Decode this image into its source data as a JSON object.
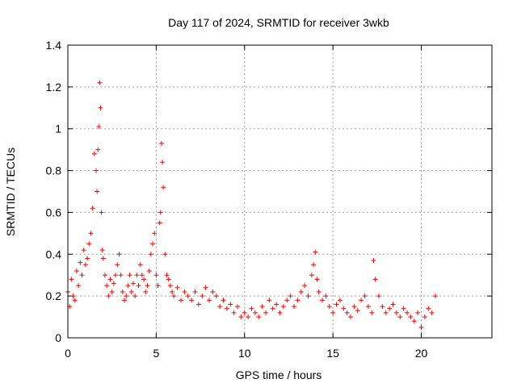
{
  "chart_data": {
    "type": "scatter",
    "title": "Day 117 of 2024, SRMTID for receiver 3wkb",
    "xlabel": "GPS time / hours",
    "ylabel": "SRMTID / TECUs",
    "xlim": [
      0,
      24
    ],
    "ylim": [
      0,
      1.4
    ],
    "xticks": [
      0,
      5,
      10,
      15,
      20
    ],
    "xtick_labels": [
      "0",
      "5",
      "10",
      "15",
      "20"
    ],
    "yticks": [
      0,
      0.2,
      0.4,
      0.6,
      0.8,
      1,
      1.2,
      1.4
    ],
    "ytick_labels": [
      "0",
      "0.2",
      "0.4",
      "0.6",
      "0.8",
      "1",
      "1.2",
      "1.4"
    ],
    "grid": true,
    "marker": "plus",
    "series": [
      {
        "name": "SRMTID",
        "color": "#ff0000",
        "x": [
          0.0,
          0.1,
          0.2,
          0.3,
          0.4,
          0.5,
          0.6,
          0.7,
          0.8,
          0.9,
          1.0,
          1.1,
          1.2,
          1.3,
          1.4,
          1.5,
          1.6,
          1.65,
          1.7,
          1.75,
          1.8,
          1.85,
          1.9,
          1.95,
          2.0,
          2.1,
          2.2,
          2.3,
          2.4,
          2.5,
          2.6,
          2.7,
          2.8,
          2.9,
          3.0,
          3.1,
          3.2,
          3.3,
          3.4,
          3.5,
          3.6,
          3.7,
          3.8,
          3.9,
          4.0,
          4.1,
          4.2,
          4.3,
          4.4,
          4.5,
          4.6,
          4.7,
          4.8,
          4.9,
          5.0,
          5.1,
          5.2,
          5.25,
          5.3,
          5.35,
          5.4,
          5.5,
          5.6,
          5.7,
          5.8,
          5.9,
          6.0,
          6.2,
          6.4,
          6.6,
          6.8,
          7.0,
          7.2,
          7.4,
          7.6,
          7.8,
          8.0,
          8.2,
          8.4,
          8.6,
          8.8,
          9.0,
          9.2,
          9.4,
          9.6,
          9.8,
          10.0,
          10.2,
          10.4,
          10.6,
          10.8,
          11.0,
          11.2,
          11.4,
          11.6,
          11.8,
          12.0,
          12.2,
          12.4,
          12.6,
          12.8,
          13.0,
          13.2,
          13.4,
          13.6,
          13.8,
          13.9,
          14.0,
          14.1,
          14.2,
          14.4,
          14.6,
          14.8,
          15.0,
          15.2,
          15.4,
          15.6,
          15.8,
          16.0,
          16.2,
          16.4,
          16.6,
          16.8,
          17.0,
          17.2,
          17.3,
          17.4,
          17.6,
          17.8,
          18.0,
          18.2,
          18.4,
          18.6,
          18.8,
          19.0,
          19.2,
          19.4,
          19.6,
          19.8,
          20.0,
          20.2,
          20.4,
          20.6,
          20.8
        ],
        "y": [
          0.22,
          0.15,
          0.28,
          0.2,
          0.18,
          0.32,
          0.25,
          0.36,
          0.3,
          0.42,
          0.35,
          0.38,
          0.45,
          0.5,
          0.62,
          0.88,
          0.8,
          0.7,
          0.9,
          1.01,
          1.22,
          1.1,
          0.6,
          0.42,
          0.38,
          0.3,
          0.25,
          0.2,
          0.28,
          0.22,
          0.26,
          0.3,
          0.35,
          0.4,
          0.3,
          0.22,
          0.18,
          0.2,
          0.25,
          0.3,
          0.22,
          0.26,
          0.2,
          0.3,
          0.25,
          0.35,
          0.3,
          0.28,
          0.22,
          0.25,
          0.32,
          0.4,
          0.45,
          0.5,
          0.3,
          0.25,
          0.55,
          0.6,
          0.93,
          0.84,
          0.72,
          0.4,
          0.3,
          0.28,
          0.25,
          0.22,
          0.2,
          0.24,
          0.18,
          0.22,
          0.2,
          0.18,
          0.22,
          0.16,
          0.2,
          0.24,
          0.18,
          0.22,
          0.2,
          0.15,
          0.18,
          0.14,
          0.16,
          0.12,
          0.15,
          0.1,
          0.12,
          0.1,
          0.14,
          0.12,
          0.1,
          0.15,
          0.12,
          0.18,
          0.14,
          0.16,
          0.12,
          0.15,
          0.18,
          0.2,
          0.15,
          0.18,
          0.22,
          0.25,
          0.2,
          0.3,
          0.35,
          0.41,
          0.28,
          0.22,
          0.18,
          0.2,
          0.15,
          0.12,
          0.16,
          0.18,
          0.14,
          0.12,
          0.1,
          0.15,
          0.13,
          0.18,
          0.2,
          0.15,
          0.12,
          0.37,
          0.28,
          0.2,
          0.15,
          0.12,
          0.14,
          0.16,
          0.12,
          0.1,
          0.14,
          0.12,
          0.1,
          0.08,
          0.12,
          0.05,
          0.1,
          0.14,
          0.12,
          0.2
        ]
      }
    ]
  }
}
